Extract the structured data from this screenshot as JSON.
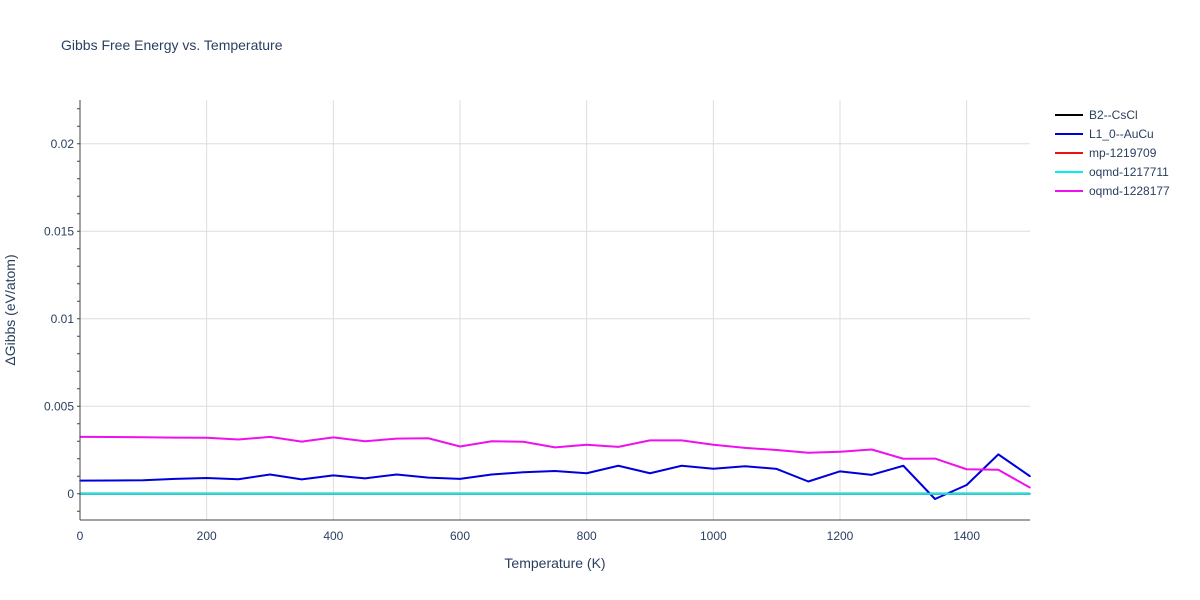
{
  "chart_data": {
    "type": "line",
    "title": "Gibbs Free Energy vs. Temperature",
    "xlabel": "Temperature (K)",
    "ylabel": "ΔGibbs (eV/atom)",
    "xlim": [
      0,
      1500
    ],
    "ylim": [
      -0.0015,
      0.0225
    ],
    "x_ticks": [
      0,
      200,
      400,
      600,
      800,
      1000,
      1200,
      1400
    ],
    "x_tick_labels": [
      "0",
      "200",
      "400",
      "600",
      "800",
      "1000",
      "1200",
      "1400"
    ],
    "y_ticks": [
      0,
      0.005,
      0.01,
      0.015,
      0.02
    ],
    "y_tick_labels": [
      "0",
      "0.005",
      "0.01",
      "0.015",
      "0.02"
    ],
    "grid": true,
    "legend_position": "top-right",
    "series": [
      {
        "name": "B2--CsCl",
        "color": "#000000",
        "x": [
          0,
          50,
          100,
          150,
          200,
          250,
          300,
          350,
          400,
          450,
          500,
          550,
          600,
          650,
          700,
          750,
          800,
          850,
          900,
          950,
          1000,
          1050,
          1100,
          1150,
          1200,
          1250,
          1300,
          1350,
          1400,
          1450,
          1500
        ],
        "y": [
          0,
          0,
          0,
          0,
          0,
          0,
          0,
          0,
          0,
          0,
          0,
          0,
          0,
          0,
          0,
          0,
          0,
          0,
          0,
          0,
          0,
          0,
          0,
          0,
          0,
          0,
          0,
          0,
          0,
          0,
          0
        ]
      },
      {
        "name": "L1_0--AuCu",
        "color": "#0000dd",
        "x": [
          0,
          50,
          100,
          150,
          200,
          250,
          300,
          350,
          400,
          450,
          500,
          550,
          600,
          650,
          700,
          750,
          800,
          850,
          900,
          950,
          1000,
          1050,
          1100,
          1150,
          1200,
          1250,
          1300,
          1350,
          1400,
          1450,
          1500
        ],
        "y": [
          0.00075,
          0.00076,
          0.00077,
          0.00085,
          0.0009,
          0.00083,
          0.0011,
          0.00082,
          0.00105,
          0.00088,
          0.0011,
          0.00092,
          0.00085,
          0.0011,
          0.00123,
          0.0013,
          0.00117,
          0.0016,
          0.00117,
          0.0016,
          0.00143,
          0.00157,
          0.00142,
          0.0007,
          0.00128,
          0.00108,
          0.0016,
          -0.0003,
          0.0005,
          0.00225,
          0.001
        ]
      },
      {
        "name": "mp-1219709",
        "color": "#ee1111",
        "x": [
          0,
          50,
          100,
          150,
          200,
          250,
          300,
          350,
          400,
          450,
          500,
          550,
          600,
          650,
          700,
          750,
          800,
          850,
          900,
          950,
          1000,
          1050,
          1100,
          1150,
          1200,
          1250,
          1300,
          1350,
          1400,
          1450,
          1500
        ],
        "y": [
          0,
          0,
          0,
          0,
          0,
          0,
          0,
          0,
          0,
          0,
          0,
          0,
          0,
          0,
          0,
          0,
          0,
          0,
          0,
          0,
          0,
          0,
          0,
          0,
          0,
          0,
          0,
          0,
          0,
          0,
          0
        ]
      },
      {
        "name": "oqmd-1217711",
        "color": "#00f0f0",
        "x": [
          0,
          50,
          100,
          150,
          200,
          250,
          300,
          350,
          400,
          450,
          500,
          550,
          600,
          650,
          700,
          750,
          800,
          850,
          900,
          950,
          1000,
          1050,
          1100,
          1150,
          1200,
          1250,
          1300,
          1350,
          1400,
          1450,
          1500
        ],
        "y": [
          0,
          0,
          0,
          0,
          0,
          0,
          0,
          0,
          0,
          0,
          0,
          0,
          0,
          0,
          0,
          0,
          0,
          0,
          0,
          0,
          0,
          0,
          0,
          0,
          0,
          0,
          0,
          0,
          0,
          0,
          0
        ]
      },
      {
        "name": "oqmd-1228177",
        "color": "#ee11ee",
        "x": [
          0,
          50,
          100,
          150,
          200,
          250,
          300,
          350,
          400,
          450,
          500,
          550,
          600,
          650,
          700,
          750,
          800,
          850,
          900,
          950,
          1000,
          1050,
          1100,
          1150,
          1200,
          1250,
          1300,
          1350,
          1400,
          1450,
          1500
        ],
        "y": [
          0.00325,
          0.00324,
          0.00323,
          0.00321,
          0.0032,
          0.0031,
          0.00325,
          0.00298,
          0.00322,
          0.003,
          0.00315,
          0.00317,
          0.0027,
          0.003,
          0.00297,
          0.00265,
          0.0028,
          0.00268,
          0.00305,
          0.00305,
          0.0028,
          0.00262,
          0.0025,
          0.00234,
          0.0024,
          0.00253,
          0.002,
          0.00201,
          0.0014,
          0.00137,
          0.00035
        ]
      }
    ]
  }
}
